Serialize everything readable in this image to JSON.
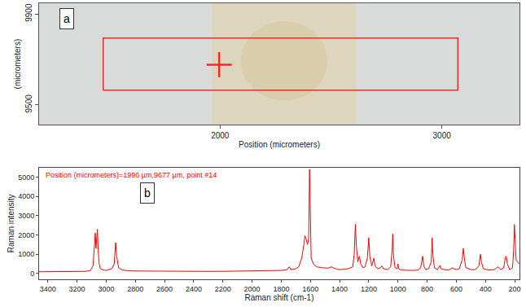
{
  "chart_data": [
    {
      "type": "image",
      "panel": "a",
      "xlabel": "Position (micrometers)",
      "ylabel": "(micrometers)",
      "xlim": [
        1184,
        3350
      ],
      "ylim": [
        9413,
        9947
      ],
      "xticks": [
        2000,
        3000
      ],
      "yticks": [
        9500,
        9900
      ],
      "region": {
        "x": [
          1473,
          3072
        ],
        "y": [
          9565,
          9794
        ]
      },
      "point": {
        "x": 1996,
        "y": 9677
      },
      "marker": "cross",
      "color": "#ee2a2a"
    },
    {
      "type": "line",
      "panel": "b",
      "annotation": "Position (micrometers)=1996 µm,9677 µm, point #14",
      "xlabel": "Raman shift (cm-1)",
      "ylabel": "Raman intensity",
      "xlim": [
        3460,
        167
      ],
      "ylim": [
        -300,
        5500
      ],
      "xticks": [
        3400,
        3200,
        3000,
        2800,
        2600,
        2400,
        2200,
        2000,
        1800,
        1600,
        1400,
        1200,
        1000,
        800,
        600,
        400,
        200
      ],
      "yticks": [
        0,
        1000,
        2000,
        3000,
        4000,
        5000
      ],
      "color": "#ff0000",
      "x": [
        3460,
        3400,
        3300,
        3200,
        3150,
        3110,
        3090,
        3080,
        3075,
        3070,
        3065,
        3060,
        3055,
        3048,
        3040,
        3020,
        3000,
        2980,
        2960,
        2945,
        2935,
        2928,
        2915,
        2890,
        2860,
        2800,
        2700,
        2600,
        2500,
        2400,
        2300,
        2200,
        2100,
        2000,
        1900,
        1800,
        1760,
        1745,
        1735,
        1700,
        1680,
        1660,
        1645,
        1638,
        1630,
        1620,
        1612,
        1606,
        1600,
        1595,
        1580,
        1560,
        1520,
        1480,
        1455,
        1445,
        1420,
        1400,
        1380,
        1340,
        1310,
        1300,
        1292,
        1285,
        1275,
        1265,
        1255,
        1240,
        1225,
        1210,
        1200,
        1193,
        1180,
        1172,
        1165,
        1158,
        1140,
        1120,
        1110,
        1100,
        1070,
        1050,
        1040,
        1036,
        1030,
        1020,
        1005,
        1000,
        995,
        980,
        950,
        900,
        860,
        845,
        835,
        830,
        824,
        810,
        790,
        772,
        766,
        760,
        750,
        730,
        712,
        705,
        680,
        650,
        625,
        618,
        600,
        580,
        560,
        552,
        545,
        535,
        500,
        470,
        445,
        435,
        428,
        415,
        380,
        340,
        315,
        308,
        295,
        275,
        265,
        258,
        250,
        235,
        215,
        207,
        202,
        197,
        190,
        180,
        170
      ],
      "values": [
        90,
        95,
        95,
        100,
        110,
        150,
        400,
        1500,
        2100,
        1300,
        1700,
        2300,
        1200,
        500,
        250,
        180,
        160,
        200,
        260,
        500,
        1600,
        900,
        300,
        180,
        150,
        130,
        120,
        115,
        110,
        110,
        110,
        115,
        120,
        125,
        140,
        160,
        200,
        350,
        200,
        250,
        350,
        800,
        1500,
        1950,
        1800,
        1500,
        1800,
        5400,
        3000,
        800,
        500,
        350,
        300,
        280,
        350,
        300,
        230,
        200,
        220,
        250,
        350,
        1000,
        2550,
        1400,
        600,
        900,
        500,
        300,
        350,
        800,
        1850,
        900,
        400,
        600,
        800,
        400,
        250,
        300,
        400,
        250,
        200,
        350,
        1200,
        2050,
        900,
        300,
        250,
        500,
        250,
        180,
        170,
        160,
        180,
        300,
        700,
        900,
        400,
        200,
        250,
        600,
        1850,
        900,
        300,
        200,
        420,
        250,
        200,
        180,
        300,
        250,
        200,
        250,
        700,
        1300,
        800,
        300,
        200,
        200,
        400,
        1000,
        600,
        250,
        180,
        200,
        350,
        300,
        200,
        300,
        800,
        900,
        500,
        200,
        300,
        1200,
        2550,
        1800,
        700,
        600,
        500
      ]
    }
  ]
}
